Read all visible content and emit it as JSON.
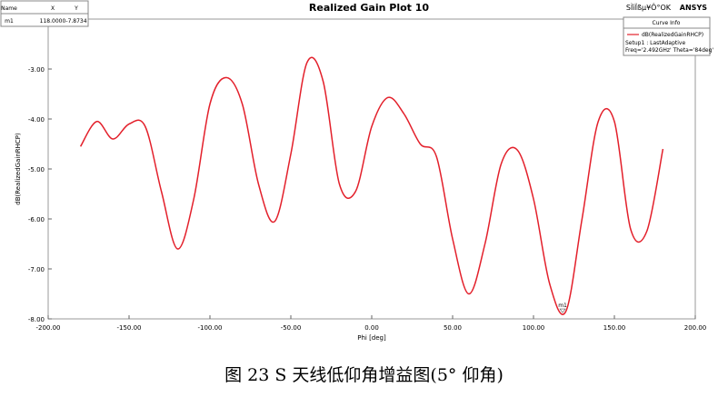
{
  "chart_data": {
    "type": "line",
    "title": "Realized Gain Plot 10",
    "brand": "ANSYS",
    "project_label": "SÌìÏßµ¥Ô°OK",
    "xlabel": "Phi [deg]",
    "ylabel": "dB(RealizedGainRHCP)",
    "legend": {
      "title": "Curve Info",
      "lines": [
        "Setup1 : LastAdaptive",
        "Freq='2.492GHz' Theta='84deg'"
      ]
    },
    "x": [
      -180,
      -170,
      -160,
      -150,
      -140,
      -130,
      -120,
      -110,
      -100,
      -90,
      -80,
      -70,
      -60,
      -50,
      -40,
      -30,
      -20,
      -10,
      0,
      10,
      20,
      30,
      40,
      50,
      60,
      70,
      80,
      90,
      100,
      110,
      120,
      130,
      140,
      150,
      160,
      170,
      180
    ],
    "series": [
      {
        "name": "dB(RealizedGainRHCP)",
        "color": "#e3202b",
        "values": [
          -4.55,
          -4.05,
          -4.4,
          -4.1,
          -4.15,
          -5.45,
          -6.6,
          -5.6,
          -3.7,
          -3.17,
          -3.7,
          -5.3,
          -6.05,
          -4.7,
          -2.87,
          -3.25,
          -5.3,
          -5.45,
          -4.15,
          -3.57,
          -3.9,
          -4.5,
          -4.75,
          -6.4,
          -7.5,
          -6.5,
          -4.9,
          -4.62,
          -5.6,
          -7.3,
          -7.85,
          -6.0,
          -4.05,
          -4.05,
          -6.2,
          -6.25,
          -4.6
        ]
      }
    ],
    "xlim": [
      -200,
      200
    ],
    "ylim": [
      -8,
      -2
    ],
    "xticks": [
      {
        "value": -200,
        "label": "-200.00"
      },
      {
        "value": -150,
        "label": "-150.00"
      },
      {
        "value": -100,
        "label": "-100.00"
      },
      {
        "value": -50,
        "label": "-50.00"
      },
      {
        "value": 0,
        "label": "0.00"
      },
      {
        "value": 50,
        "label": "50.00"
      },
      {
        "value": 100,
        "label": "100.00"
      },
      {
        "value": 150,
        "label": "150.00"
      },
      {
        "value": 200,
        "label": "200.00"
      }
    ],
    "yticks": [
      {
        "value": -8,
        "label": "-8.00"
      },
      {
        "value": -7,
        "label": "-7.00"
      },
      {
        "value": -6,
        "label": "-6.00"
      },
      {
        "value": -5,
        "label": "-5.00"
      },
      {
        "value": -4,
        "label": "-4.00"
      },
      {
        "value": -3,
        "label": "-3.00"
      }
    ],
    "grid": false,
    "marker_table": {
      "columns": [
        "Name",
        "X",
        "Y"
      ]
    },
    "marker": {
      "name": "m1",
      "x": 118,
      "x_label": "118.0000",
      "y": -7.8734
    }
  },
  "caption": "图 23 S 天线低仰角增益图(5° 仰角)"
}
